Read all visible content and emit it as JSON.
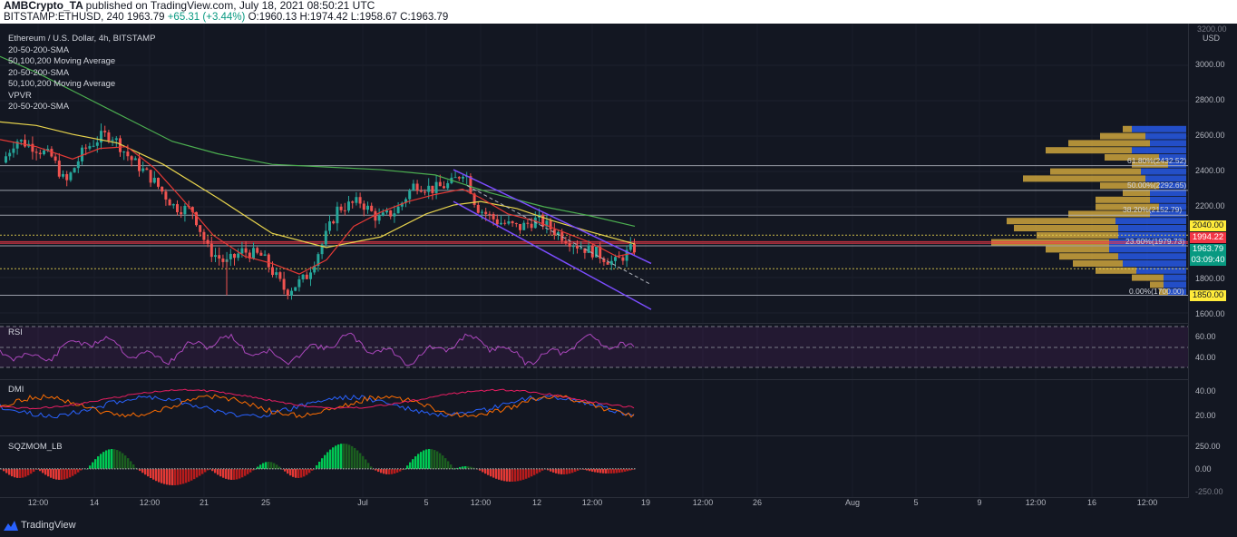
{
  "header": {
    "author": "AMBCrypto_TA",
    "published": "published on TradingView.com, July 18, 2021 08:50:21 UTC",
    "symbol": "BITSTAMP:ETHUSD, 240",
    "last": "1963.79",
    "change": "+65.31 (+3.44%)",
    "open": "O:1960.13",
    "high": "H:1974.42",
    "low": "L:1958.67",
    "close": "C:1963.79"
  },
  "legend": {
    "title": "Ethereum / U.S. Dollar, 4h, BITSTAMP",
    "items": [
      "20-50-200-SMA",
      "50,100,200 Moving Average",
      "20-50-200-SMA",
      "50,100,200 Moving Average",
      "VPVR",
      "20-50-200-SMA"
    ]
  },
  "price_axis": {
    "currency": "USD",
    "top_label": "3200.00",
    "labels": [
      "3000.00",
      "2800.00",
      "2600.00",
      "2400.00",
      "2200.00",
      "1800.00",
      "1600.00"
    ]
  },
  "price_tags": {
    "resistance": "2040.00",
    "red_line": "1994.22",
    "last_price": "1963.79",
    "countdown": "03:09:40",
    "support": "1850.00"
  },
  "fib_levels": [
    "61.80%(2432.52)",
    "50.00%(2292.65)",
    "38.20%(2152.79)",
    "23.60%(1979.73)",
    "0.00%(1700.00)"
  ],
  "rsi": {
    "title": "RSI",
    "labels": [
      "60.00",
      "40.00"
    ]
  },
  "dmi": {
    "title": "DMI",
    "labels": [
      "40.00",
      "20.00"
    ]
  },
  "sqzmom": {
    "title": "SQZMOM_LB",
    "labels": [
      "250.00",
      "0.00",
      "-250.00"
    ]
  },
  "time_axis": [
    "12:00",
    "14",
    "12:00",
    "21",
    "25",
    "Jul",
    "5",
    "12:00",
    "12",
    "12:00",
    "19",
    "12:00",
    "26",
    "Aug",
    "5",
    "9",
    "12:00",
    "16",
    "12:00"
  ],
  "footer": {
    "brand": "TradingView"
  },
  "colors": {
    "bg": "#131722",
    "up": "#26a69a",
    "down": "#ef5350",
    "sma_fast": "#e53935",
    "sma_mid": "#e8d44d",
    "sma_slow": "#4caf50",
    "channel": "#7b4dff",
    "rsi": "#9c27b0",
    "dmi_plus": "#2962ff",
    "dmi_minus": "#ff6d00",
    "adx": "#e91e63",
    "vp_buy": "#2962ff",
    "vp_sell": "#f5c342"
  }
}
